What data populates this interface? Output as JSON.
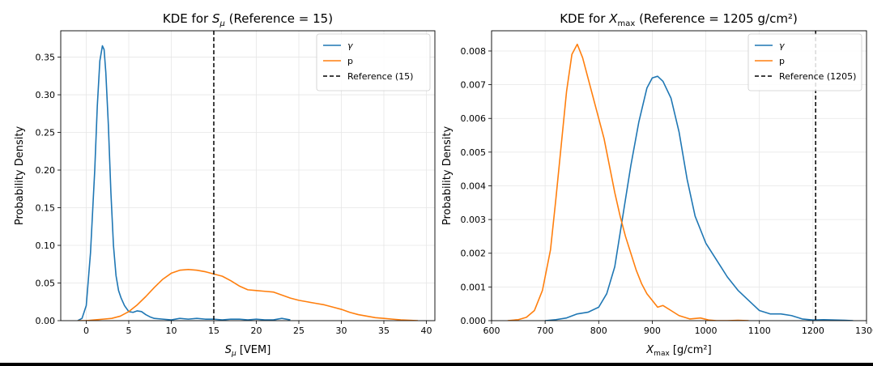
{
  "chart_data": [
    {
      "type": "line",
      "title": {
        "pre": "KDE for ",
        "sym": "S",
        "sub": "μ",
        "post": " (Reference = 15)"
      },
      "xlabel": {
        "sym": "S",
        "sub": "μ",
        "post": " [VEM]"
      },
      "ylabel": "Probability Density",
      "xlim": [
        -3,
        41
      ],
      "ylim": [
        0,
        0.385
      ],
      "grid": true,
      "legend_position": "top-right",
      "xticks": [
        0,
        5,
        10,
        15,
        20,
        25,
        30,
        35,
        40
      ],
      "xtick_labels": [
        "0",
        "5",
        "10",
        "15",
        "20",
        "25",
        "30",
        "35",
        "40"
      ],
      "yticks": [
        0,
        0.05,
        0.1,
        0.15,
        0.2,
        0.25,
        0.3,
        0.35
      ],
      "ytick_labels": [
        "0.00",
        "0.05",
        "0.10",
        "0.15",
        "0.20",
        "0.25",
        "0.30",
        "0.35"
      ],
      "reference": {
        "x": 15,
        "label": "Reference (15)"
      },
      "series": [
        {
          "name": "γ",
          "color": "#1f77b4",
          "x": [
            -1.0,
            -0.5,
            0.0,
            0.5,
            1.0,
            1.3,
            1.6,
            1.9,
            2.1,
            2.3,
            2.6,
            2.9,
            3.2,
            3.5,
            3.8,
            4.1,
            4.5,
            5.0,
            5.5,
            6.0,
            6.5,
            7.0,
            7.5,
            8.0,
            9.0,
            10.0,
            11.0,
            12.0,
            13.0,
            14.0,
            15.0,
            16.0,
            17.0,
            18.0,
            19.0,
            20.0,
            21.0,
            22.0,
            23.0,
            24.0
          ],
          "y": [
            0.0,
            0.003,
            0.02,
            0.09,
            0.2,
            0.285,
            0.345,
            0.365,
            0.36,
            0.33,
            0.26,
            0.17,
            0.1,
            0.06,
            0.04,
            0.03,
            0.02,
            0.012,
            0.011,
            0.013,
            0.012,
            0.008,
            0.005,
            0.003,
            0.002,
            0.001,
            0.003,
            0.002,
            0.003,
            0.002,
            0.002,
            0.001,
            0.002,
            0.002,
            0.001,
            0.002,
            0.001,
            0.001,
            0.003,
            0.001
          ]
        },
        {
          "name": "p",
          "color": "#ff7f0e",
          "x": [
            -1.0,
            0.0,
            1.0,
            2.0,
            3.0,
            4.0,
            5.0,
            6.0,
            7.0,
            8.0,
            9.0,
            10.0,
            11.0,
            12.0,
            13.0,
            14.0,
            15.0,
            16.0,
            17.0,
            18.0,
            19.0,
            20.0,
            21.0,
            22.0,
            23.0,
            24.0,
            25.0,
            26.0,
            27.0,
            28.0,
            29.0,
            30.0,
            31.0,
            32.0,
            33.0,
            34.0,
            35.0,
            36.0,
            37.0,
            38.0,
            39.0
          ],
          "y": [
            0.0,
            0.0,
            0.001,
            0.002,
            0.003,
            0.006,
            0.012,
            0.021,
            0.032,
            0.044,
            0.055,
            0.063,
            0.067,
            0.068,
            0.067,
            0.065,
            0.062,
            0.059,
            0.053,
            0.046,
            0.041,
            0.04,
            0.039,
            0.038,
            0.034,
            0.03,
            0.027,
            0.025,
            0.023,
            0.021,
            0.018,
            0.015,
            0.011,
            0.008,
            0.006,
            0.004,
            0.003,
            0.002,
            0.001,
            0.0005,
            0.0
          ]
        }
      ]
    },
    {
      "type": "line",
      "title": {
        "pre": "KDE for ",
        "sym": "X",
        "sub": "max",
        "post": " (Reference = 1205 g/cm²)"
      },
      "xlabel": {
        "sym": "X",
        "sub": "max",
        "post": " [g/cm²]"
      },
      "ylabel": "Probability Density",
      "xlim": [
        600,
        1300
      ],
      "ylim": [
        0,
        0.0086
      ],
      "grid": true,
      "legend_position": "top-right",
      "xticks": [
        600,
        700,
        800,
        900,
        1000,
        1100,
        1200,
        1300
      ],
      "xtick_labels": [
        "600",
        "700",
        "800",
        "900",
        "1000",
        "1100",
        "1200",
        "1300"
      ],
      "yticks": [
        0,
        0.001,
        0.002,
        0.003,
        0.004,
        0.005,
        0.006,
        0.007,
        0.008
      ],
      "ytick_labels": [
        "0.000",
        "0.001",
        "0.002",
        "0.003",
        "0.004",
        "0.005",
        "0.006",
        "0.007",
        "0.008"
      ],
      "reference": {
        "x": 1205,
        "label": "Reference (1205)"
      },
      "series": [
        {
          "name": "γ",
          "color": "#1f77b4",
          "x": [
            700,
            720,
            740,
            760,
            780,
            800,
            815,
            830,
            845,
            860,
            875,
            890,
            900,
            910,
            920,
            935,
            950,
            965,
            980,
            1000,
            1020,
            1040,
            1060,
            1080,
            1100,
            1120,
            1140,
            1160,
            1180,
            1200,
            1220,
            1240,
            1260,
            1275
          ],
          "y": [
            0.0,
            3e-05,
            8e-05,
            0.0002,
            0.00025,
            0.0004,
            0.0008,
            0.0016,
            0.0031,
            0.0046,
            0.0059,
            0.0069,
            0.0072,
            0.00725,
            0.0071,
            0.0066,
            0.0056,
            0.0042,
            0.0031,
            0.0023,
            0.0018,
            0.0013,
            0.0009,
            0.0006,
            0.0003,
            0.0002,
            0.0002,
            0.00015,
            5e-05,
            2e-05,
            3e-05,
            2e-05,
            1e-05,
            0.0
          ]
        },
        {
          "name": "p",
          "color": "#ff7f0e",
          "x": [
            630,
            650,
            665,
            680,
            695,
            710,
            720,
            730,
            740,
            750,
            760,
            770,
            780,
            790,
            800,
            810,
            820,
            830,
            840,
            850,
            860,
            870,
            880,
            890,
            900,
            910,
            920,
            935,
            950,
            970,
            990,
            1005,
            1020,
            1040,
            1060,
            1080
          ],
          "y": [
            0.0,
            3e-05,
            0.0001,
            0.0003,
            0.0009,
            0.0021,
            0.0036,
            0.0052,
            0.0068,
            0.0079,
            0.0082,
            0.0078,
            0.0072,
            0.0066,
            0.006,
            0.0054,
            0.0046,
            0.0038,
            0.0031,
            0.0025,
            0.002,
            0.0015,
            0.0011,
            0.0008,
            0.0006,
            0.0004,
            0.00045,
            0.0003,
            0.00015,
            5e-05,
            8e-05,
            2e-05,
            0.0,
            0.0,
            1e-05,
            0.0
          ]
        }
      ]
    }
  ]
}
